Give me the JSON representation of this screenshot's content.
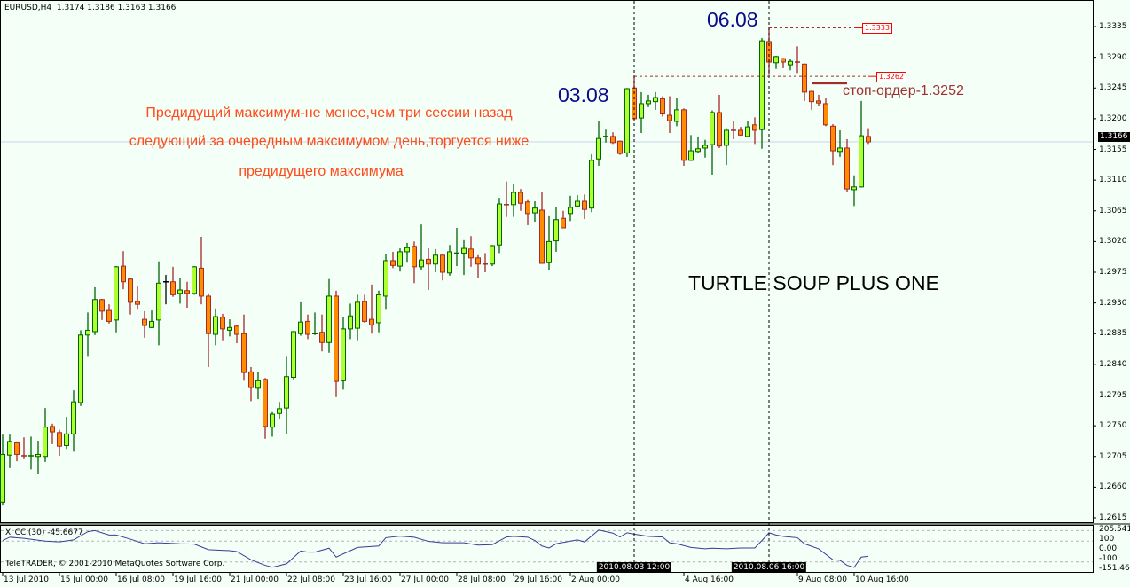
{
  "header": {
    "symbol": "EURUSD,H4",
    "ohlc": "1.3174 1.3186 1.3163 1.3166"
  },
  "colors": {
    "background": "#f4fff8",
    "bull_body": "#adff2f",
    "bull_border": "#006400",
    "bear_body": "#ff8c00",
    "bear_border": "#a52a2a",
    "doji": "#000000",
    "cci_line": "#3c3c96",
    "note_text": "#ff4a1a",
    "date_mark": "#0a0a8c"
  },
  "annotations": {
    "note_lines": [
      "Предидущий максимум-не менее,чем три сессии назад",
      "следующий за очередным максимумом день,торгуется ниже",
      "предидущего максимума"
    ],
    "mark_1": "03.08",
    "mark_2": "06.08",
    "pattern_title": "TURTLE SOUP PLUS ONE",
    "stop_order": "стоп-ордер-1.3252",
    "level_high": "1.3333",
    "level_prev_high": "1.3262"
  },
  "price_axis": {
    "ticks": [
      "1.3335",
      "1.3290",
      "1.3245",
      "1.3200",
      "1.3155",
      "1.3110",
      "1.3065",
      "1.3020",
      "1.2975",
      "1.2930",
      "1.2885",
      "1.2840",
      "1.2795",
      "1.2750",
      "1.2705",
      "1.2660",
      "1.2615"
    ],
    "current": "1.3166"
  },
  "indicator": {
    "title": "X_CCI(30) -45.6677",
    "copyright": "TeleTRADER, © 2001-2010 MetaQuotes Software Corp.",
    "axis_labels": [
      "205.541",
      "100",
      "0.00",
      "-100",
      "-151.460"
    ]
  },
  "time_axis": {
    "labels": [
      "13 Jul 2010",
      "15 Jul 00:00",
      "16 Jul 08:00",
      "19 Jul 16:00",
      "21 Jul 00:00",
      "22 Jul 08:00",
      "23 Jul 16:00",
      "27 Jul 00:00",
      "28 Jul 08:00",
      "29 Jul 16:00",
      "2 Aug 00:00",
      "4 Aug 16:00",
      "9 Aug 08:00",
      "10 Aug 16:00"
    ],
    "highlight_1": "2010.08.03 12:00",
    "highlight_2": "2010.08.06 16:00"
  },
  "chart_data": {
    "type": "candlestick",
    "symbol": "EURUSD",
    "timeframe": "H4",
    "ylim": [
      1.2615,
      1.3335
    ],
    "levels": {
      "high": 1.3333,
      "prev_high": 1.3262,
      "stop": 1.3252,
      "current": 1.3166
    },
    "marked_bars": [
      89,
      108
    ],
    "ohlc": [
      [
        1.2638,
        1.2737,
        1.2633,
        1.2708
      ],
      [
        1.2707,
        1.2737,
        1.2688,
        1.2727
      ],
      [
        1.2725,
        1.2727,
        1.2698,
        1.2708
      ],
      [
        1.2706,
        1.2733,
        1.2701,
        1.2705
      ],
      [
        1.2705,
        1.2734,
        1.2686,
        1.2706
      ],
      [
        1.2705,
        1.2728,
        1.2679,
        1.2708
      ],
      [
        1.2705,
        1.2776,
        1.2697,
        1.2748
      ],
      [
        1.2749,
        1.2753,
        1.2723,
        1.2741
      ],
      [
        1.274,
        1.2744,
        1.2706,
        1.272
      ],
      [
        1.2721,
        1.2763,
        1.2716,
        1.2738
      ],
      [
        1.2738,
        1.2802,
        1.2712,
        1.2785
      ],
      [
        1.2784,
        1.289,
        1.2779,
        1.2883
      ],
      [
        1.2883,
        1.2916,
        1.2851,
        1.289
      ],
      [
        1.2888,
        1.2953,
        1.2883,
        1.2935
      ],
      [
        1.2935,
        1.2936,
        1.2905,
        1.2918
      ],
      [
        1.2919,
        1.2928,
        1.29,
        1.2903
      ],
      [
        1.2905,
        1.2984,
        1.2887,
        1.2983
      ],
      [
        1.2984,
        1.3006,
        1.295,
        1.2961
      ],
      [
        1.2965,
        1.2966,
        1.2913,
        1.2931
      ],
      [
        1.2932,
        1.2954,
        1.292,
        1.2928
      ],
      [
        1.2906,
        1.2918,
        1.2879,
        1.2897
      ],
      [
        1.2894,
        1.2919,
        1.2893,
        1.2903
      ],
      [
        1.2905,
        1.2991,
        1.2868,
        1.2959
      ],
      [
        1.2961,
        1.2971,
        1.2928,
        1.2961
      ],
      [
        1.2961,
        1.2983,
        1.2939,
        1.2942
      ],
      [
        1.2944,
        1.2966,
        1.2929,
        1.2949
      ],
      [
        1.2948,
        1.2961,
        1.2923,
        1.2944
      ],
      [
        1.2944,
        1.2984,
        1.2942,
        1.2983
      ],
      [
        1.2981,
        1.3027,
        1.2928,
        1.294
      ],
      [
        1.294,
        1.2944,
        1.2836,
        1.2885
      ],
      [
        1.2884,
        1.2922,
        1.2868,
        1.291
      ],
      [
        1.2909,
        1.2914,
        1.2874,
        1.2892
      ],
      [
        1.289,
        1.2906,
        1.2881,
        1.2894
      ],
      [
        1.2896,
        1.2898,
        1.2871,
        1.2884
      ],
      [
        1.2885,
        1.2913,
        1.2816,
        1.2828
      ],
      [
        1.2829,
        1.2836,
        1.2786,
        1.2806
      ],
      [
        1.2805,
        1.2829,
        1.2789,
        1.2816
      ],
      [
        1.2818,
        1.282,
        1.2731,
        1.2749
      ],
      [
        1.2748,
        1.277,
        1.2734,
        1.2767
      ],
      [
        1.2768,
        1.2785,
        1.276,
        1.2775
      ],
      [
        1.2776,
        1.2851,
        1.2738,
        1.2822
      ],
      [
        1.2821,
        1.2889,
        1.2818,
        1.2888
      ],
      [
        1.2885,
        1.2931,
        1.2882,
        1.2902
      ],
      [
        1.2903,
        1.2913,
        1.2877,
        1.2884
      ],
      [
        1.2884,
        1.2916,
        1.2883,
        1.2885
      ],
      [
        1.2887,
        1.2913,
        1.2859,
        1.2872
      ],
      [
        1.2872,
        1.2965,
        1.2857,
        1.294
      ],
      [
        1.294,
        1.2948,
        1.2792,
        1.2815
      ],
      [
        1.2816,
        1.2909,
        1.2803,
        1.2892
      ],
      [
        1.2892,
        1.2929,
        1.2877,
        1.2911
      ],
      [
        1.2893,
        1.2942,
        1.2874,
        1.2931
      ],
      [
        1.2932,
        1.2942,
        1.2901,
        1.2903
      ],
      [
        1.2906,
        1.2957,
        1.2885,
        1.2898
      ],
      [
        1.2901,
        1.2948,
        1.2887,
        1.2942
      ],
      [
        1.294,
        1.3002,
        1.292,
        1.2992
      ],
      [
        1.2992,
        1.3005,
        1.2981,
        1.2985
      ],
      [
        1.2984,
        1.301,
        1.2976,
        1.3005
      ],
      [
        1.3005,
        1.3018,
        1.2989,
        1.3011
      ],
      [
        1.3013,
        1.302,
        1.2959,
        1.2983
      ],
      [
        1.2983,
        1.3045,
        1.2978,
        1.2993
      ],
      [
        1.2994,
        1.301,
        1.2949,
        1.2987
      ],
      [
        1.2987,
        1.3009,
        1.2975,
        1.3
      ],
      [
        1.3,
        1.3001,
        1.2963,
        1.2975
      ],
      [
        1.2974,
        1.3015,
        1.297,
        1.3005
      ],
      [
        1.3002,
        1.304,
        1.2984,
        1.3003
      ],
      [
        1.3003,
        1.3022,
        1.2971,
        1.301
      ],
      [
        1.3009,
        1.3028,
        1.2983,
        1.2996
      ],
      [
        1.2996,
        1.3,
        1.2966,
        1.2987
      ],
      [
        1.2987,
        1.3003,
        1.2975,
        1.2986
      ],
      [
        1.2987,
        1.3015,
        1.2984,
        1.3014
      ],
      [
        1.3015,
        1.3084,
        1.3003,
        1.3075
      ],
      [
        1.3074,
        1.3108,
        1.3056,
        1.3073
      ],
      [
        1.3074,
        1.3105,
        1.3056,
        1.3092
      ],
      [
        1.3092,
        1.3097,
        1.3065,
        1.3076
      ],
      [
        1.3078,
        1.3082,
        1.3044,
        1.3061
      ],
      [
        1.3062,
        1.3079,
        1.3049,
        1.3069
      ],
      [
        1.3066,
        1.3093,
        1.2988,
        1.2988
      ],
      [
        1.2989,
        1.3057,
        1.2978,
        1.302
      ],
      [
        1.3021,
        1.307,
        1.3005,
        1.3052
      ],
      [
        1.3054,
        1.3065,
        1.304,
        1.304
      ],
      [
        1.3061,
        1.3087,
        1.305,
        1.307
      ],
      [
        1.3072,
        1.3088,
        1.307,
        1.3079
      ],
      [
        1.3079,
        1.3089,
        1.3053,
        1.3067
      ],
      [
        1.3069,
        1.3148,
        1.3063,
        1.3139
      ],
      [
        1.3141,
        1.3196,
        1.3131,
        1.3171
      ],
      [
        1.3173,
        1.3184,
        1.3165,
        1.3174
      ],
      [
        1.3174,
        1.318,
        1.3163,
        1.3165
      ],
      [
        1.3167,
        1.3168,
        1.3147,
        1.3149
      ],
      [
        1.315,
        1.3245,
        1.3144,
        1.3244
      ],
      [
        1.3245,
        1.3262,
        1.3199,
        1.32
      ],
      [
        1.3201,
        1.3239,
        1.3179,
        1.3222
      ],
      [
        1.3222,
        1.3235,
        1.3217,
        1.3226
      ],
      [
        1.3225,
        1.3239,
        1.3213,
        1.3231
      ],
      [
        1.3229,
        1.3233,
        1.3203,
        1.3207
      ],
      [
        1.3205,
        1.3233,
        1.3179,
        1.3197
      ],
      [
        1.3196,
        1.3231,
        1.3189,
        1.3213
      ],
      [
        1.3213,
        1.3215,
        1.3131,
        1.3139
      ],
      [
        1.3139,
        1.3176,
        1.3138,
        1.3153
      ],
      [
        1.3152,
        1.3174,
        1.315,
        1.3156
      ],
      [
        1.3157,
        1.3169,
        1.3143,
        1.3161
      ],
      [
        1.3162,
        1.3212,
        1.3118,
        1.3209
      ],
      [
        1.3209,
        1.3235,
        1.3157,
        1.316
      ],
      [
        1.3161,
        1.3186,
        1.3132,
        1.3183
      ],
      [
        1.3183,
        1.3196,
        1.317,
        1.3182
      ],
      [
        1.3183,
        1.3188,
        1.3175,
        1.3176
      ],
      [
        1.3174,
        1.3196,
        1.3173,
        1.3188
      ],
      [
        1.3191,
        1.3202,
        1.3163,
        1.3183
      ],
      [
        1.3184,
        1.3318,
        1.3156,
        1.3314
      ],
      [
        1.3313,
        1.3333,
        1.3264,
        1.3283
      ],
      [
        1.3282,
        1.3292,
        1.3273,
        1.3291
      ],
      [
        1.3288,
        1.3289,
        1.3274,
        1.3283
      ],
      [
        1.3279,
        1.3288,
        1.3271,
        1.3284
      ],
      [
        1.3283,
        1.3306,
        1.3267,
        1.3282
      ],
      [
        1.328,
        1.3281,
        1.3226,
        1.3239
      ],
      [
        1.324,
        1.3241,
        1.3213,
        1.3225
      ],
      [
        1.3226,
        1.3235,
        1.3218,
        1.3223
      ],
      [
        1.3222,
        1.3231,
        1.3189,
        1.3191
      ],
      [
        1.3189,
        1.3192,
        1.3132,
        1.3153
      ],
      [
        1.3152,
        1.3183,
        1.3144,
        1.3157
      ],
      [
        1.3157,
        1.317,
        1.3092,
        1.3097
      ],
      [
        1.3096,
        1.3117,
        1.3072,
        1.31
      ],
      [
        1.31,
        1.3226,
        1.3099,
        1.3175
      ],
      [
        1.3174,
        1.3186,
        1.3163,
        1.3166
      ]
    ],
    "cci": {
      "name": "X_CCI(30)",
      "ylim": [
        -151.46,
        205.541
      ],
      "levels": [
        200,
        100,
        -100
      ],
      "points": [
        [
          0,
          105
        ],
        [
          1,
          137
        ],
        [
          3,
          126
        ],
        [
          6,
          100
        ],
        [
          8,
          92
        ],
        [
          10,
          111
        ],
        [
          12,
          190
        ],
        [
          13,
          200
        ],
        [
          15,
          158
        ],
        [
          16,
          158
        ],
        [
          18,
          118
        ],
        [
          20,
          74
        ],
        [
          22,
          84
        ],
        [
          25,
          74
        ],
        [
          27,
          71
        ],
        [
          29,
          18
        ],
        [
          32,
          8
        ],
        [
          33,
          0
        ],
        [
          35,
          -79
        ],
        [
          37,
          -132
        ],
        [
          38,
          -150
        ],
        [
          40,
          -118
        ],
        [
          42,
          5
        ],
        [
          43,
          -5
        ],
        [
          44,
          -5
        ],
        [
          46,
          32
        ],
        [
          47,
          -53
        ],
        [
          50,
          39
        ],
        [
          53,
          53
        ],
        [
          54,
          132
        ],
        [
          56,
          147
        ],
        [
          58,
          137
        ],
        [
          60,
          97
        ],
        [
          62,
          84
        ],
        [
          65,
          84
        ],
        [
          67,
          61
        ],
        [
          69,
          66
        ],
        [
          71,
          139
        ],
        [
          72,
          145
        ],
        [
          74,
          137
        ],
        [
          75,
          105
        ],
        [
          76,
          53
        ],
        [
          77,
          34
        ],
        [
          78,
          74
        ],
        [
          80,
          100
        ],
        [
          81,
          111
        ],
        [
          82,
          92
        ],
        [
          84,
          205.541
        ],
        [
          86,
          176
        ],
        [
          87,
          139
        ],
        [
          88,
          179
        ],
        [
          89,
          166
        ],
        [
          91,
          145
        ],
        [
          93,
          139
        ],
        [
          94,
          84
        ],
        [
          95,
          74
        ],
        [
          97,
          39
        ],
        [
          99,
          26
        ],
        [
          100,
          32
        ],
        [
          102,
          26
        ],
        [
          104,
          34
        ],
        [
          106,
          34
        ],
        [
          107,
          105
        ],
        [
          108,
          179
        ],
        [
          109,
          158
        ],
        [
          110,
          145
        ],
        [
          112,
          132
        ],
        [
          113,
          74
        ],
        [
          115,
          26
        ],
        [
          117,
          -79
        ],
        [
          118,
          -84
        ],
        [
          119,
          -132
        ],
        [
          120,
          -151.46
        ],
        [
          121,
          -53
        ],
        [
          122,
          -45.6677
        ]
      ]
    }
  }
}
